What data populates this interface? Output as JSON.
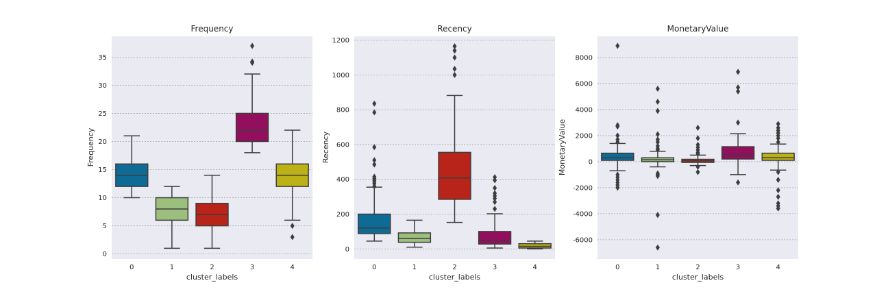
{
  "chart_data": [
    {
      "type": "box",
      "title": "Frequency",
      "xlabel": "cluster_labels",
      "ylabel": "Frequency",
      "ylim": [
        -0.9,
        38.7
      ],
      "yticks": [
        0,
        5,
        10,
        15,
        20,
        25,
        30,
        35
      ],
      "grid": true,
      "categories": [
        "0",
        "1",
        "2",
        "3",
        "4"
      ],
      "colors": [
        "#0e6b95",
        "#9cbf7e",
        "#b8241a",
        "#940e5e",
        "#bcb116"
      ],
      "boxes": [
        {
          "category": "0",
          "whislo": 10,
          "q1": 12,
          "med": 14,
          "q3": 16,
          "whishi": 21,
          "fliers": []
        },
        {
          "category": "1",
          "whislo": 1,
          "q1": 6,
          "med": 8,
          "q3": 10,
          "whishi": 12,
          "fliers": []
        },
        {
          "category": "2",
          "whislo": 1,
          "q1": 5,
          "med": 7,
          "q3": 9,
          "whishi": 14,
          "fliers": []
        },
        {
          "category": "3",
          "whislo": 18,
          "q1": 20,
          "med": 22,
          "q3": 25,
          "whishi": 32,
          "fliers": [
            34,
            34.2,
            37
          ]
        },
        {
          "category": "4",
          "whislo": 6,
          "q1": 12,
          "med": 14,
          "q3": 16,
          "whishi": 22,
          "fliers": [
            5,
            3
          ]
        }
      ]
    },
    {
      "type": "box",
      "title": "Recency",
      "xlabel": "cluster_labels",
      "ylabel": "Recency",
      "ylim": [
        -58,
        1222
      ],
      "yticks": [
        0,
        200,
        400,
        600,
        800,
        1000,
        1200
      ],
      "grid": true,
      "categories": [
        "0",
        "1",
        "2",
        "3",
        "4"
      ],
      "colors": [
        "#0e6b95",
        "#9cbf7e",
        "#b8241a",
        "#940e5e",
        "#bcb116"
      ],
      "boxes": [
        {
          "category": "0",
          "whislo": 45,
          "q1": 88,
          "med": 120,
          "q3": 200,
          "whishi": 355,
          "fliers": [
            360,
            375,
            385,
            395,
            405,
            415,
            485,
            510,
            585,
            785,
            835
          ]
        },
        {
          "category": "1",
          "whislo": 10,
          "q1": 38,
          "med": 60,
          "q3": 92,
          "whishi": 165,
          "fliers": []
        },
        {
          "category": "2",
          "whislo": 152,
          "q1": 285,
          "med": 408,
          "q3": 555,
          "whishi": 882,
          "fliers": [
            1000,
            1035,
            1100,
            1140,
            1165
          ]
        },
        {
          "category": "3",
          "whislo": 5,
          "q1": 28,
          "med": 50,
          "q3": 100,
          "whishi": 202,
          "fliers": [
            230,
            270,
            290,
            305,
            320,
            350,
            395,
            412
          ]
        },
        {
          "category": "4",
          "whislo": 0,
          "q1": 5,
          "med": 15,
          "q3": 30,
          "whishi": 45,
          "fliers": []
        }
      ]
    },
    {
      "type": "box",
      "title": "MonetaryValue",
      "xlabel": "cluster_labels",
      "ylabel": "MonetaryValue",
      "ylim": [
        -7480,
        9630
      ],
      "yticks": [
        -6000,
        -4000,
        -2000,
        0,
        2000,
        4000,
        6000,
        8000
      ],
      "grid": true,
      "categories": [
        "0",
        "1",
        "2",
        "3",
        "4"
      ],
      "colors": [
        "#0e6b95",
        "#9cbf7e",
        "#b8241a",
        "#940e5e",
        "#bcb116"
      ],
      "boxes": [
        {
          "category": "0",
          "whislo": -700,
          "q1": 100,
          "med": 300,
          "q3": 650,
          "whishi": 1400,
          "fliers": [
            -2000,
            -1800,
            -1600,
            -1400,
            -1200,
            -1000,
            1500,
            1700,
            2000,
            2700,
            2800,
            8900
          ]
        },
        {
          "category": "1",
          "whislo": -400,
          "q1": 0,
          "med": 150,
          "q3": 300,
          "whishi": 800,
          "fliers": [
            -6600,
            -4100,
            -1100,
            -1000,
            -900,
            900,
            1000,
            1200,
            1500,
            1700,
            2100,
            3900,
            4600,
            5600
          ]
        },
        {
          "category": "2",
          "whislo": -300,
          "q1": -60,
          "med": 60,
          "q3": 180,
          "whishi": 500,
          "fliers": [
            -800,
            -400,
            600,
            700,
            900,
            1100,
            1300,
            1800,
            2600
          ]
        },
        {
          "category": "3",
          "whislo": -1000,
          "q1": 200,
          "med": 500,
          "q3": 1150,
          "whishi": 2150,
          "fliers": [
            -1600,
            3000,
            5400,
            5700,
            6900
          ]
        },
        {
          "category": "4",
          "whislo": -650,
          "q1": 100,
          "med": 300,
          "q3": 650,
          "whishi": 1350,
          "fliers": [
            -3600,
            -3400,
            -3200,
            -2700,
            -2200,
            -1400,
            -800,
            1500,
            1800,
            2000,
            2200,
            2400,
            2600,
            2900
          ]
        }
      ]
    }
  ]
}
